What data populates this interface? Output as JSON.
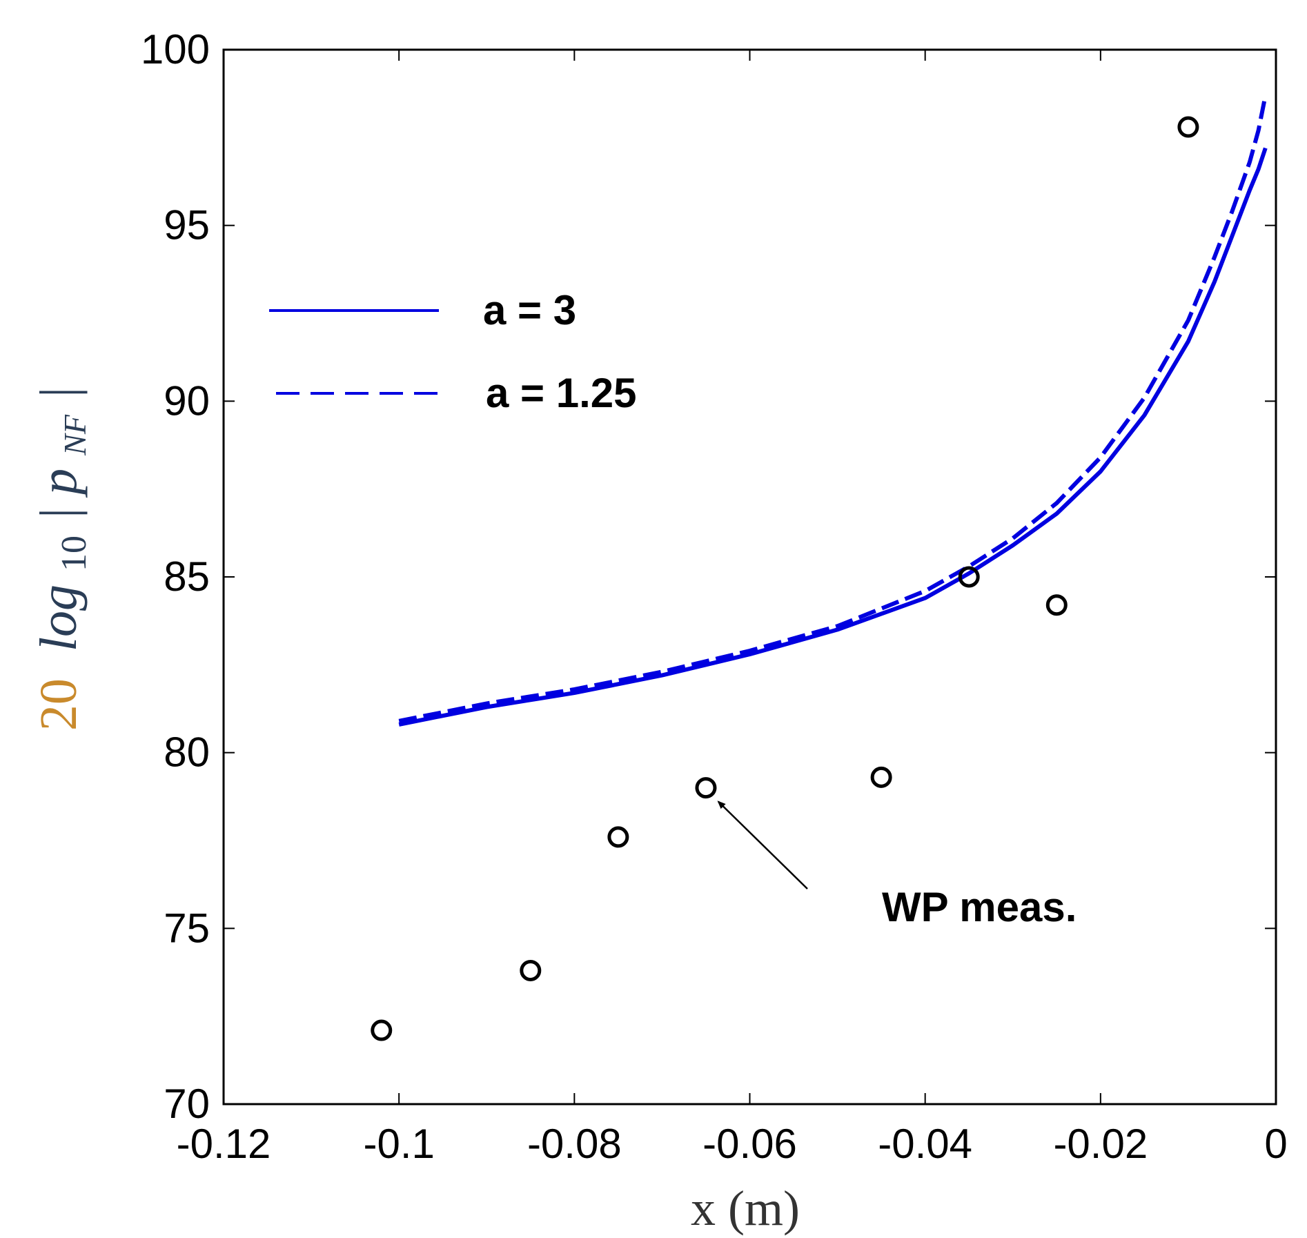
{
  "chart_data": {
    "type": "line",
    "title": "",
    "xlabel": "x (m)",
    "ylabel": {
      "prefix": "20",
      "log": "log",
      "sub": "10",
      "body": "p",
      "body_sub": "NF",
      "open_bar": "|",
      "close_bar": "|"
    },
    "xlim": [
      -0.12,
      0
    ],
    "ylim": [
      70,
      100
    ],
    "xticks": [
      -0.12,
      -0.1,
      -0.08,
      -0.06,
      -0.04,
      -0.02,
      0
    ],
    "xtick_labels": [
      "-0.12",
      "-0.1",
      "-0.08",
      "-0.06",
      "-0.04",
      "-0.02",
      "0"
    ],
    "yticks": [
      70,
      75,
      80,
      85,
      90,
      95,
      100
    ],
    "ytick_labels": [
      "70",
      "75",
      "80",
      "85",
      "90",
      "95",
      "100"
    ],
    "grid": false,
    "legend_position": "upper-left",
    "series": [
      {
        "name": "a = 3",
        "style": "solid",
        "color": "#0000e0",
        "x": [
          -0.1,
          -0.09,
          -0.08,
          -0.07,
          -0.06,
          -0.05,
          -0.04,
          -0.035,
          -0.03,
          -0.025,
          -0.02,
          -0.015,
          -0.01,
          -0.007,
          -0.005,
          -0.003,
          -0.002,
          -0.0012
        ],
        "y": [
          80.8,
          81.3,
          81.7,
          82.2,
          82.8,
          83.5,
          84.4,
          85.1,
          85.9,
          86.8,
          88.0,
          89.6,
          91.7,
          93.4,
          94.7,
          96.0,
          96.6,
          97.2
        ]
      },
      {
        "name": "a = 1.25",
        "style": "dashed",
        "color": "#0000e0",
        "x": [
          -0.1,
          -0.09,
          -0.08,
          -0.07,
          -0.06,
          -0.05,
          -0.04,
          -0.035,
          -0.03,
          -0.025,
          -0.02,
          -0.015,
          -0.01,
          -0.007,
          -0.005,
          -0.003,
          -0.002,
          -0.0012
        ],
        "y": [
          80.9,
          81.4,
          81.8,
          82.3,
          82.9,
          83.6,
          84.6,
          85.3,
          86.1,
          87.1,
          88.4,
          90.1,
          92.3,
          94.1,
          95.4,
          96.8,
          97.7,
          98.7
        ]
      },
      {
        "name": "WP meas.",
        "style": "markers",
        "marker": "circle",
        "color": "#000000",
        "x": [
          -0.102,
          -0.085,
          -0.075,
          -0.065,
          -0.045,
          -0.035,
          -0.025,
          -0.01
        ],
        "y": [
          72.1,
          73.8,
          77.6,
          79.0,
          79.3,
          85.0,
          84.2,
          97.8
        ]
      }
    ],
    "annotations": [
      {
        "text": "WP meas.",
        "arrow_to_series": "WP meas.",
        "arrow_to_index": 3
      }
    ]
  }
}
